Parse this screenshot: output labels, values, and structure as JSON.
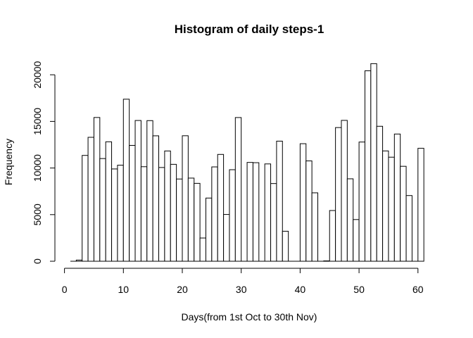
{
  "chart_data": {
    "type": "bar",
    "title": "Histogram of daily steps-1",
    "xlabel": "Days(from 1st Oct to 30th Nov)",
    "ylabel": "Frequency",
    "xlim": [
      1,
      61
    ],
    "ylim": [
      0,
      21194
    ],
    "x_ticks": [
      "0",
      "10",
      "20",
      "30",
      "40",
      "50",
      "60"
    ],
    "y_ticks": [
      "0",
      "5000",
      "10000",
      "15000",
      "20000"
    ],
    "bin_start": 1,
    "bin_width": 1,
    "values": [
      0,
      126,
      11352,
      13294,
      15420,
      11015,
      12811,
      9900,
      10304,
      17382,
      12426,
      15098,
      10139,
      15084,
      13452,
      10056,
      11829,
      10395,
      8821,
      13460,
      8918,
      8355,
      2492,
      6778,
      10119,
      11458,
      5018,
      9819,
      15414,
      0,
      10600,
      10571,
      0,
      10439,
      8334,
      12883,
      3219,
      0,
      0,
      12608,
      10765,
      7336,
      0,
      41,
      5441,
      14339,
      15110,
      8841,
      4472,
      12787,
      20427,
      21194,
      14478,
      11834,
      11162,
      13646,
      10183,
      7047,
      0,
      12116
    ],
    "grid": false
  }
}
